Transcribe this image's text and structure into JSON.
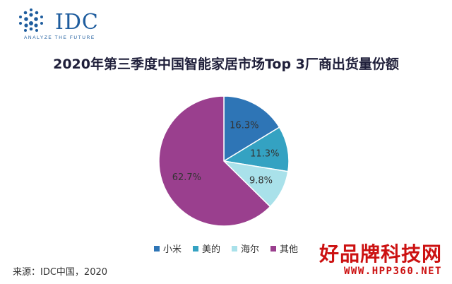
{
  "logo": {
    "text": "IDC",
    "tagline": "ANALYZE THE FUTURE"
  },
  "chart_data": {
    "type": "pie",
    "title": "2020年第三季度中国智能家居市场Top 3厂商出货量份额",
    "categories": [
      "小米",
      "美的",
      "海尔",
      "其他"
    ],
    "values": [
      16.3,
      11.3,
      9.8,
      62.7
    ],
    "labels": [
      "16.3%",
      "11.3%",
      "9.8%",
      "62.7%"
    ],
    "colors": [
      "#2e75b6",
      "#34a2c2",
      "#a9e1ea",
      "#9a3f8e"
    ],
    "legend_position": "bottom"
  },
  "source": "来源：IDC中国，2020",
  "watermark": {
    "text": "好品牌科技网",
    "url": "WWW.HPP360.NET"
  }
}
